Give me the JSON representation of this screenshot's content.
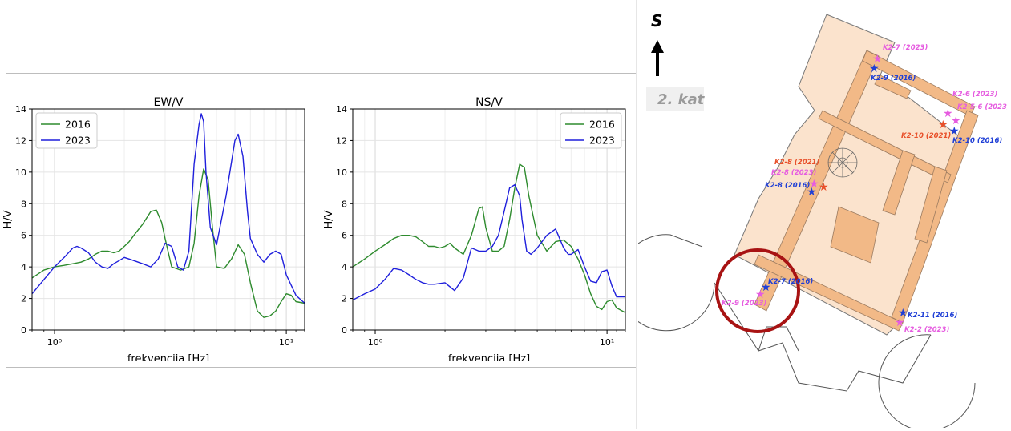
{
  "colors": {
    "series_2016": "#2e8b2e",
    "series_2023": "#1f1fdc",
    "marker_2021": "#e8502a",
    "marker_2023": "#e65ce0",
    "marker_2016": "#1f3fd6",
    "circle": "#a81313",
    "floor_fill": "#f5c9a0"
  },
  "chart_data": [
    {
      "type": "line",
      "title": "EW/V",
      "xlabel": "frekvencija [Hz]",
      "ylabel": "H/V",
      "xscale": "log",
      "xlim": [
        0.8,
        12
      ],
      "ylim": [
        0,
        14
      ],
      "yticks": [
        "0",
        "2",
        "4",
        "6",
        "8",
        "10",
        "12",
        "14"
      ],
      "xticks": [
        "10⁰",
        "10¹"
      ],
      "grid": true,
      "legend": "top-left",
      "series": [
        {
          "name": "2016",
          "x": [
            0.8,
            0.9,
            1.0,
            1.1,
            1.2,
            1.3,
            1.4,
            1.5,
            1.6,
            1.7,
            1.8,
            1.9,
            2.0,
            2.1,
            2.2,
            2.4,
            2.6,
            2.75,
            2.9,
            3.0,
            3.2,
            3.5,
            3.8,
            4.0,
            4.2,
            4.4,
            4.6,
            4.8,
            5.0,
            5.4,
            5.8,
            6.2,
            6.6,
            7.0,
            7.5,
            8.0,
            8.5,
            9.0,
            9.5,
            10.0,
            10.5,
            11.0,
            12.0
          ],
          "values": [
            3.3,
            3.8,
            4.0,
            4.1,
            4.2,
            4.3,
            4.5,
            4.8,
            5.0,
            5.0,
            4.9,
            5.0,
            5.3,
            5.6,
            6.0,
            6.7,
            7.5,
            7.6,
            6.8,
            5.8,
            4.0,
            3.8,
            4.0,
            5.5,
            8.5,
            10.2,
            9.5,
            6.5,
            4.0,
            3.9,
            4.5,
            5.4,
            4.8,
            3.0,
            1.2,
            0.8,
            0.9,
            1.2,
            1.8,
            2.3,
            2.2,
            1.8,
            1.7
          ]
        },
        {
          "name": "2023",
          "x": [
            0.8,
            0.9,
            1.0,
            1.1,
            1.2,
            1.25,
            1.3,
            1.4,
            1.5,
            1.6,
            1.7,
            1.8,
            1.9,
            2.0,
            2.1,
            2.2,
            2.4,
            2.6,
            2.8,
            3.0,
            3.2,
            3.4,
            3.6,
            3.8,
            4.0,
            4.2,
            4.3,
            4.4,
            4.5,
            4.7,
            5.0,
            5.5,
            6.0,
            6.2,
            6.5,
            6.8,
            7.0,
            7.5,
            8.0,
            8.5,
            9.0,
            9.5,
            10.0,
            11.0,
            12.0
          ],
          "values": [
            2.3,
            3.2,
            4.0,
            4.6,
            5.2,
            5.3,
            5.2,
            4.9,
            4.3,
            4.0,
            3.9,
            4.2,
            4.4,
            4.6,
            4.5,
            4.4,
            4.2,
            4.0,
            4.5,
            5.5,
            5.3,
            4.0,
            3.8,
            5.0,
            10.5,
            13.0,
            13.7,
            13.2,
            10.0,
            6.5,
            5.4,
            8.5,
            12.0,
            12.4,
            11.0,
            7.5,
            5.8,
            4.8,
            4.3,
            4.8,
            5.0,
            4.8,
            3.5,
            2.2,
            1.7
          ]
        }
      ]
    },
    {
      "type": "line",
      "title": "NS/V",
      "xlabel": "frekvencija [Hz]",
      "ylabel": "H/V",
      "xscale": "log",
      "xlim": [
        0.8,
        12
      ],
      "ylim": [
        0,
        14
      ],
      "yticks": [
        "0",
        "2",
        "4",
        "6",
        "8",
        "10",
        "12",
        "14"
      ],
      "xticks": [
        "10⁰",
        "10¹"
      ],
      "grid": true,
      "legend": "top-right",
      "series": [
        {
          "name": "2016",
          "x": [
            0.8,
            0.9,
            1.0,
            1.1,
            1.2,
            1.3,
            1.4,
            1.5,
            1.6,
            1.7,
            1.8,
            1.9,
            2.0,
            2.1,
            2.2,
            2.4,
            2.6,
            2.8,
            2.9,
            3.0,
            3.2,
            3.4,
            3.6,
            3.8,
            4.0,
            4.2,
            4.4,
            4.6,
            5.0,
            5.5,
            6.0,
            6.5,
            7.0,
            7.5,
            8.0,
            8.5,
            9.0,
            9.5,
            10.0,
            10.5,
            11.0,
            12.0
          ],
          "values": [
            4.0,
            4.5,
            5.0,
            5.4,
            5.8,
            6.0,
            6.0,
            5.9,
            5.6,
            5.3,
            5.3,
            5.2,
            5.3,
            5.5,
            5.2,
            4.8,
            6.0,
            7.7,
            7.8,
            6.5,
            5.0,
            5.0,
            5.3,
            7.0,
            9.0,
            10.5,
            10.3,
            8.5,
            6.0,
            5.0,
            5.6,
            5.7,
            5.3,
            4.5,
            3.5,
            2.3,
            1.5,
            1.3,
            1.8,
            1.9,
            1.4,
            1.1
          ]
        },
        {
          "name": "2023",
          "x": [
            0.8,
            0.9,
            1.0,
            1.1,
            1.2,
            1.3,
            1.4,
            1.5,
            1.6,
            1.7,
            1.8,
            2.0,
            2.2,
            2.4,
            2.6,
            2.8,
            3.0,
            3.2,
            3.4,
            3.6,
            3.8,
            4.0,
            4.2,
            4.3,
            4.5,
            4.7,
            5.0,
            5.5,
            6.0,
            6.5,
            6.8,
            7.0,
            7.5,
            8.0,
            8.5,
            9.0,
            9.5,
            10.0,
            10.5,
            11.0,
            12.0
          ],
          "values": [
            1.9,
            2.3,
            2.6,
            3.2,
            3.9,
            3.8,
            3.5,
            3.2,
            3.0,
            2.9,
            2.9,
            3.0,
            2.5,
            3.3,
            5.2,
            5.0,
            5.0,
            5.3,
            6.0,
            7.5,
            9.0,
            9.2,
            8.5,
            7.0,
            5.0,
            4.8,
            5.2,
            6.0,
            6.4,
            5.2,
            4.8,
            4.8,
            5.1,
            4.0,
            3.1,
            3.0,
            3.7,
            3.8,
            2.8,
            2.1,
            2.1
          ]
        }
      ]
    }
  ],
  "map": {
    "direction_label": "S",
    "floor_label": "2. kat",
    "labels": [
      {
        "id": "k2-7-2023-top",
        "text": "K2-7 (2023)",
        "kind": "2023"
      },
      {
        "id": "k2-9-2016",
        "text": "K2-9 (2016)",
        "kind": "2016"
      },
      {
        "id": "k2-6-2023",
        "text": "K2-6 (2023)",
        "kind": "2023"
      },
      {
        "id": "k2-5-6-2023",
        "text": "K2-5-6 (2023)",
        "kind": "2023"
      },
      {
        "id": "k2-10-2021",
        "text": "K2-10 (2021)",
        "kind": "2021"
      },
      {
        "id": "k2-10-2016",
        "text": "K2-10 (2016)",
        "kind": "2016"
      },
      {
        "id": "k2-8-2021",
        "text": "K2-8 (2021)",
        "kind": "2021"
      },
      {
        "id": "k2-8-2023",
        "text": "K2-8 (2023)",
        "kind": "2023"
      },
      {
        "id": "k2-8-2016",
        "text": "K2-8 (2016)",
        "kind": "2016"
      },
      {
        "id": "k2-7-2016",
        "text": "K2-7 (2016)",
        "kind": "2016"
      },
      {
        "id": "k2-9-2023",
        "text": "K2-9 (2023)",
        "kind": "2023"
      },
      {
        "id": "k2-11-2016",
        "text": "K2-11 (2016)",
        "kind": "2016"
      },
      {
        "id": "k2-2-2023",
        "text": "K2-2 (2023)",
        "kind": "2023"
      }
    ]
  }
}
